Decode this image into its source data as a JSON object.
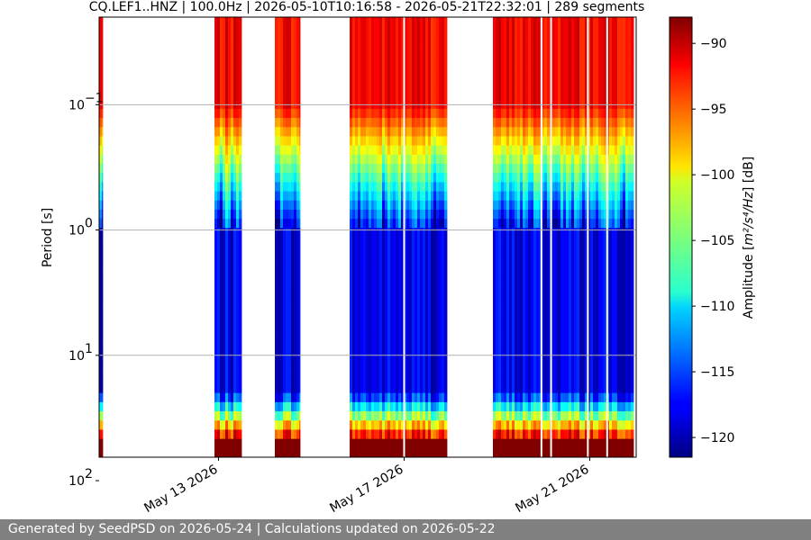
{
  "chart_data": {
    "type": "heatmap",
    "title": "CQ.LEF1..HNZ | 100.0Hz | 2026-05-10T10:16:58 - 2026-05-21T22:32:01 | 289 segments",
    "ylabel": "Period [s]",
    "y_scale": "log",
    "y_inverted": true,
    "y_range": [
      0.02,
      65
    ],
    "y_ticks": [
      {
        "value": 0.1,
        "base": "10",
        "exp": "−1"
      },
      {
        "value": 1,
        "base": "10",
        "exp": "0"
      },
      {
        "value": 10,
        "base": "10",
        "exp": "1"
      },
      {
        "value": 100,
        "base": "10",
        "exp": "2"
      }
    ],
    "x_range": [
      "2026-05-10T10:16:58",
      "2026-05-22T00:00:00"
    ],
    "x_ticks": [
      {
        "date": "2026-05-13",
        "label": "May 13 2026"
      },
      {
        "date": "2026-05-17",
        "label": "May 17 2026"
      },
      {
        "date": "2026-05-21",
        "label": "May 21 2026"
      }
    ],
    "grid": "horizontal at y ticks",
    "colorbar": {
      "label_prefix": "Amplitude [",
      "label_unit": "m²/s⁴/Hz",
      "label_suffix": "] [dB]",
      "range": [
        -121.5,
        -88
      ],
      "ticks": [
        -90,
        -95,
        -100,
        -105,
        -110,
        -115,
        -120
      ],
      "tick_labels": [
        "−90",
        "−95",
        "−100",
        "−105",
        "−110",
        "−115",
        "−120"
      ],
      "colormap": "jet"
    },
    "data_blocks": [
      {
        "start": "2026-05-10T10:16:58",
        "end": "2026-05-10T12:00:00"
      },
      {
        "start": "2026-05-12T22:00:00",
        "end": "2026-05-13T12:00:00"
      },
      {
        "start": "2026-05-14T05:00:00",
        "end": "2026-05-14T18:00:00"
      },
      {
        "start": "2026-05-15T20:00:00",
        "end": "2026-05-17T22:00:00"
      },
      {
        "start": "2026-05-18T22:00:00",
        "end": "2026-05-21T22:32:01"
      }
    ],
    "data_gaps": [
      "2026-05-17T00:00:00",
      "2026-05-19T23:00:00",
      "2026-05-20T04:00:00",
      "2026-05-20T23:00:00",
      "2026-05-21T09:00:00"
    ]
  },
  "footer": {
    "text": "Generated by SeedPSD on 2026-05-24 | Calculations updated on 2026-05-22"
  }
}
